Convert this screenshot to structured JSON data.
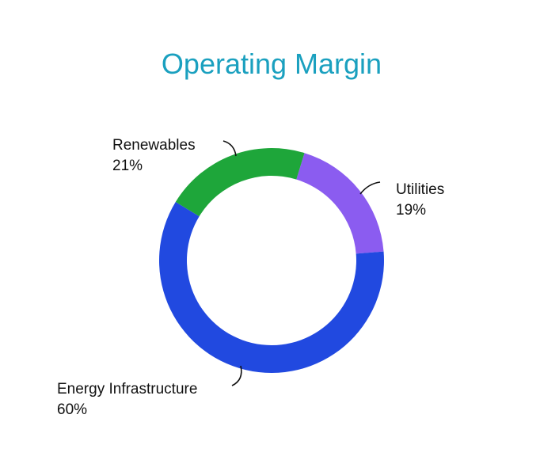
{
  "chart_data": {
    "type": "pie",
    "title": "Operating Margin",
    "categories": [
      "Utilities",
      "Energy Infrastructure",
      "Renewables"
    ],
    "values": [
      19,
      60,
      21
    ],
    "value_labels": [
      "19%",
      "60%",
      "21%"
    ],
    "colors": [
      "#8b5cf0",
      "#2149e0",
      "#1ea63a"
    ],
    "title_color": "#1aa0bf",
    "donut": true,
    "legend": "none"
  }
}
